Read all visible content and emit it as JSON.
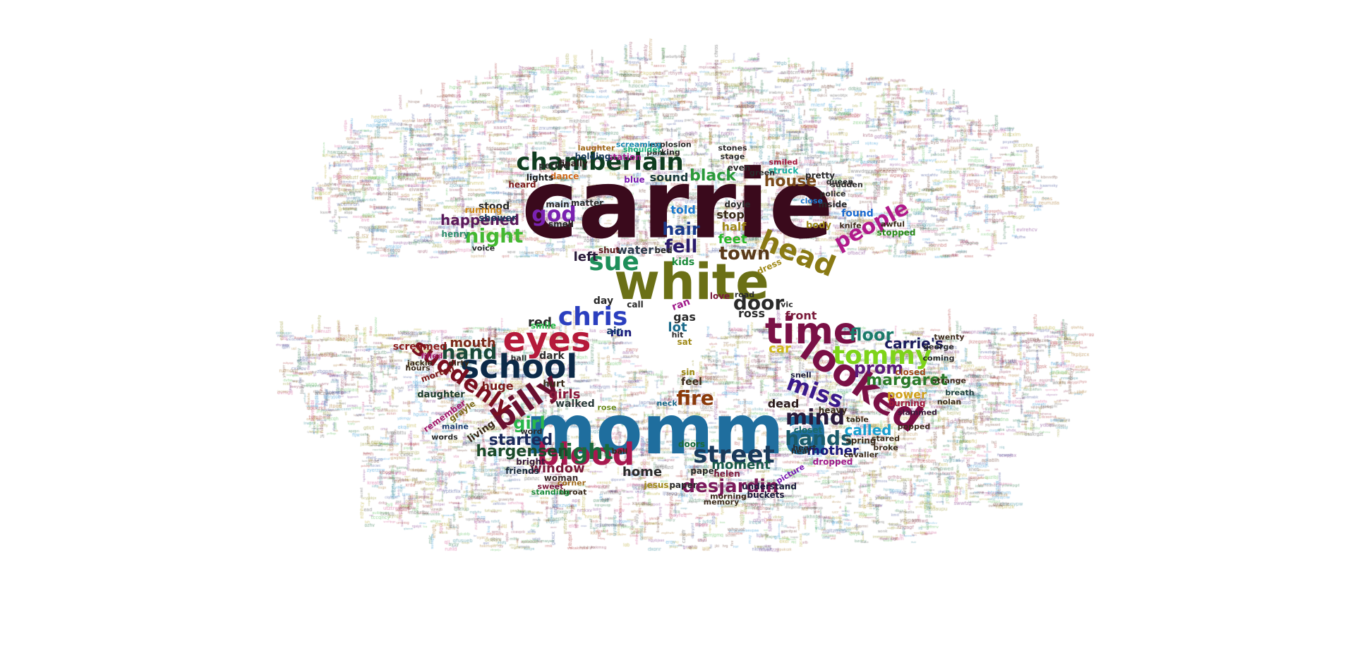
{
  "words": [
    {
      "text": "carrie",
      "color": "#3a0a1c"
    },
    {
      "text": "momma",
      "color": "#1f6e9e"
    },
    {
      "text": "white",
      "color": "#6b7016"
    },
    {
      "text": "looked",
      "color": "#7a1046"
    },
    {
      "text": "time",
      "color": "#7a1046"
    },
    {
      "text": "school",
      "color": "#0c2a48"
    },
    {
      "text": "eyes",
      "color": "#b51a3a"
    },
    {
      "text": "blood",
      "color": "#a8184f"
    },
    {
      "text": "billy",
      "color": "#6a1030"
    },
    {
      "text": "tommy",
      "color": "#7ed31a"
    },
    {
      "text": "chamberlain",
      "color": "#0f3d20"
    },
    {
      "text": "street",
      "color": "#1a3a5a"
    },
    {
      "text": "head",
      "color": "#8a7a14"
    },
    {
      "text": "chris",
      "color": "#2b3fbf"
    },
    {
      "text": "sue",
      "color": "#1e8f5a"
    },
    {
      "text": "suddenly",
      "color": "#7a1020"
    },
    {
      "text": "light",
      "color": "#1a6a3a"
    },
    {
      "text": "hands",
      "color": "#1a5a6a"
    },
    {
      "text": "mind",
      "color": "#2a1a3a"
    },
    {
      "text": "miss",
      "color": "#3a1a8a"
    },
    {
      "text": "god",
      "color": "#7a22b0"
    },
    {
      "text": "night",
      "color": "#44b832"
    },
    {
      "text": "people",
      "color": "#b01a8a"
    },
    {
      "text": "desjardin",
      "color": "#7a1a5a"
    },
    {
      "text": "hand",
      "color": "#1a4a3a"
    },
    {
      "text": "fire",
      "color": "#8a3a0a"
    },
    {
      "text": "door",
      "color": "#2a2a2a"
    },
    {
      "text": "town",
      "color": "#5a3a1a"
    },
    {
      "text": "margaret",
      "color": "#2a7a2a"
    },
    {
      "text": "prom",
      "color": "#5a1a7a"
    },
    {
      "text": "floor",
      "color": "#1a7a6a"
    },
    {
      "text": "hargensen",
      "color": "#1a4a2a"
    },
    {
      "text": "girl",
      "color": "#2ab84a"
    },
    {
      "text": "happened",
      "color": "#5a1a5a"
    },
    {
      "text": "black",
      "color": "#2a9a3a"
    },
    {
      "text": "house",
      "color": "#7a4a1a"
    },
    {
      "text": "carrie's",
      "color": "#1a1a5a"
    },
    {
      "text": "fell",
      "color": "#2a1a6a"
    },
    {
      "text": "hair",
      "color": "#1a3a8a"
    },
    {
      "text": "started",
      "color": "#1a2a5a"
    },
    {
      "text": "mother",
      "color": "#1a1a7a"
    },
    {
      "text": "called",
      "color": "#1aa0d0"
    },
    {
      "text": "moment",
      "color": "#1a5a4a"
    },
    {
      "text": "home",
      "color": "#2a2a2a"
    },
    {
      "text": "window",
      "color": "#7a1a3a"
    },
    {
      "text": "mouth",
      "color": "#7a2a1a"
    },
    {
      "text": "girls",
      "color": "#8a1a3a"
    },
    {
      "text": "red",
      "color": "#2a2a2a"
    },
    {
      "text": "water",
      "color": "#2a3a4a"
    },
    {
      "text": "feet",
      "color": "#2ab82a"
    },
    {
      "text": "stop",
      "color": "#3a2a1a"
    },
    {
      "text": "half",
      "color": "#a08a1a"
    },
    {
      "text": "sound",
      "color": "#1a3a3a"
    },
    {
      "text": "told",
      "color": "#1a7ad0"
    },
    {
      "text": "car",
      "color": "#d0b81a"
    },
    {
      "text": "dead",
      "color": "#2a1a1a"
    },
    {
      "text": "power",
      "color": "#d0a01a"
    },
    {
      "text": "screamed",
      "color": "#8a1a1a"
    },
    {
      "text": "huge",
      "color": "#7a1a1a"
    },
    {
      "text": "run",
      "color": "#1a1a7a"
    },
    {
      "text": "left",
      "color": "#2a1a3a"
    },
    {
      "text": "kids",
      "color": "#1a8a3a"
    },
    {
      "text": "shower",
      "color": "#1a3a5a"
    },
    {
      "text": "stood",
      "color": "#2a2a2a"
    },
    {
      "text": "ross",
      "color": "#2a2a2a"
    },
    {
      "text": "front",
      "color": "#7a1a3a"
    },
    {
      "text": "dark",
      "color": "#2a2a2a"
    },
    {
      "text": "walked",
      "color": "#2a3a3a"
    },
    {
      "text": "living",
      "color": "#3a2a1a"
    },
    {
      "text": "gas",
      "color": "#2a2a2a"
    },
    {
      "text": "lot",
      "color": "#1a6a8a"
    },
    {
      "text": "ran",
      "color": "#a01a8a"
    },
    {
      "text": "feel",
      "color": "#3a2a1a"
    },
    {
      "text": "closed",
      "color": "#a04a1a"
    },
    {
      "text": "burning",
      "color": "#a01a3a"
    },
    {
      "text": "closet",
      "color": "#1a6a6a"
    },
    {
      "text": "heavy",
      "color": "#3a2a1a"
    },
    {
      "text": "spring",
      "color": "#3a2a1a"
    },
    {
      "text": "dropped",
      "color": "#a01a8a"
    },
    {
      "text": "understand",
      "color": "#1a1a3a"
    },
    {
      "text": "buckets",
      "color": "#1a1a3a"
    },
    {
      "text": "paper",
      "color": "#2a2a2a"
    },
    {
      "text": "helen",
      "color": "#7a1a3a"
    },
    {
      "text": "jesus",
      "color": "#a08a1a"
    },
    {
      "text": "doors",
      "color": "#1a6a3a"
    },
    {
      "text": "woman",
      "color": "#3a2a2a"
    },
    {
      "text": "bright",
      "color": "#3a1a3a"
    },
    {
      "text": "friends",
      "color": "#1a2a3a"
    },
    {
      "text": "daughter",
      "color": "#1a3a2a"
    },
    {
      "text": "remember",
      "color": "#a01a6a"
    },
    {
      "text": "grayle",
      "color": "#7a6a1a"
    },
    {
      "text": "morton",
      "color": "#7a1a1a"
    },
    {
      "text": "hurt",
      "color": "#3a2a1a"
    },
    {
      "text": "air",
      "color": "#1a3a6a"
    },
    {
      "text": "day",
      "color": "#2a2a2a"
    },
    {
      "text": "call",
      "color": "#2a2a2a"
    },
    {
      "text": "dress",
      "color": "#a08a1a"
    },
    {
      "text": "love",
      "color": "#7a1a3a"
    },
    {
      "text": "bed",
      "color": "#2a2a2a"
    },
    {
      "text": "shut",
      "color": "#5a1a1a"
    },
    {
      "text": "doyle",
      "color": "#2a2a2a"
    },
    {
      "text": "smell",
      "color": "#2a2a2a"
    },
    {
      "text": "main",
      "color": "#2a2a2a"
    },
    {
      "text": "matter",
      "color": "#2a2a2a"
    },
    {
      "text": "blue",
      "color": "#7a1ab0"
    },
    {
      "text": "station",
      "color": "#a01a8a"
    },
    {
      "text": "holding",
      "color": "#1a3a5a"
    },
    {
      "text": "dance",
      "color": "#d06a1a"
    },
    {
      "text": "finally",
      "color": "#2a1a1a"
    },
    {
      "text": "period",
      "color": "#2a2a2a"
    },
    {
      "text": "lights",
      "color": "#1a1a1a"
    },
    {
      "text": "heard",
      "color": "#7a1a1a"
    },
    {
      "text": "running",
      "color": "#d08a1a"
    },
    {
      "text": "henry",
      "color": "#2a8a6a"
    },
    {
      "text": "voice",
      "color": "#2a2a2a"
    },
    {
      "text": "smile",
      "color": "#2ab84a"
    },
    {
      "text": "hall",
      "color": "#2a2a2a"
    },
    {
      "text": "hit",
      "color": "#2a2a2a"
    },
    {
      "text": "sat",
      "color": "#a08a1a"
    },
    {
      "text": "sin",
      "color": "#a08a1a"
    },
    {
      "text": "neck",
      "color": "#1a6a8a"
    },
    {
      "text": "rose",
      "color": "#6a8a1a"
    },
    {
      "text": "road",
      "color": "#2a2a2a"
    },
    {
      "text": "vic",
      "color": "#2a2a2a"
    },
    {
      "text": "snell",
      "color": "#1a1a3a"
    },
    {
      "text": "table",
      "color": "#3a2a1a"
    },
    {
      "text": "stared",
      "color": "#3a2a1a"
    },
    {
      "text": "broke",
      "color": "#3a2a1a"
    },
    {
      "text": "cavalier",
      "color": "#3a2a1a"
    },
    {
      "text": "coming",
      "color": "#2a2a2a"
    },
    {
      "text": "george",
      "color": "#2a2a2a"
    },
    {
      "text": "twenty",
      "color": "#3a2a1a"
    },
    {
      "text": "strange",
      "color": "#3a2a1a"
    },
    {
      "text": "breath",
      "color": "#1a3a3a"
    },
    {
      "text": "nolan",
      "color": "#3a2a1a"
    },
    {
      "text": "slammed",
      "color": "#3a1a3a"
    },
    {
      "text": "popped",
      "color": "#3a2a1a"
    },
    {
      "text": "inside",
      "color": "#2a2a2a"
    },
    {
      "text": "police",
      "color": "#2a2a2a"
    },
    {
      "text": "found",
      "color": "#1a6ad0"
    },
    {
      "text": "knife",
      "color": "#3a2a1a"
    },
    {
      "text": "awful",
      "color": "#3a2a1a"
    },
    {
      "text": "stopped",
      "color": "#2a8a1a"
    },
    {
      "text": "body",
      "color": "#a08a1a"
    },
    {
      "text": "close",
      "color": "#1a7ad0"
    },
    {
      "text": "pretty",
      "color": "#2a2a2a"
    },
    {
      "text": "queen",
      "color": "#2a2a2a"
    },
    {
      "text": "sudden",
      "color": "#2a2a2a"
    },
    {
      "text": "smiled",
      "color": "#a01a3a"
    },
    {
      "text": "struck",
      "color": "#1ab0a0"
    },
    {
      "text": "even",
      "color": "#2a2a2a"
    },
    {
      "text": "green",
      "color": "#2a2a2a"
    },
    {
      "text": "stage",
      "color": "#2a2a2a"
    },
    {
      "text": "stones",
      "color": "#2a2a2a"
    },
    {
      "text": "explosion",
      "color": "#2a2a2a"
    },
    {
      "text": "parking",
      "color": "#2a2a2a"
    },
    {
      "text": "shoulder",
      "color": "#1ab07a"
    },
    {
      "text": "screaming",
      "color": "#1a8ab0"
    },
    {
      "text": "laughter",
      "color": "#a06a1a"
    },
    {
      "text": "memory",
      "color": "#3a2a1a"
    },
    {
      "text": "morning",
      "color": "#3a2a1a"
    },
    {
      "text": "picture",
      "color": "#7a1ab0"
    },
    {
      "text": "paper",
      "color": "#2a2a2a"
    },
    {
      "text": "heart",
      "color": "#2a2a2a"
    },
    {
      "text": "hear",
      "color": "#2a2a2a"
    },
    {
      "text": "throat",
      "color": "#3a2a1a"
    },
    {
      "text": "corner",
      "color": "#a06a1a"
    },
    {
      "text": "sweet",
      "color": "#7a1a3a"
    },
    {
      "text": "standing",
      "color": "#1a8a3a"
    },
    {
      "text": "ball",
      "color": "#3a2a1a"
    },
    {
      "text": "word",
      "color": "#2a2a2a"
    },
    {
      "text": "words",
      "color": "#2a2a2a"
    },
    {
      "text": "maine",
      "color": "#1a3a6a"
    },
    {
      "text": "jackie",
      "color": "#3a2a1a"
    },
    {
      "text": "hours",
      "color": "#3a2a1a"
    },
    {
      "text": "filled",
      "color": "#a01a6a"
    },
    {
      "text": "dirty",
      "color": "#3a2a1a"
    }
  ]
}
